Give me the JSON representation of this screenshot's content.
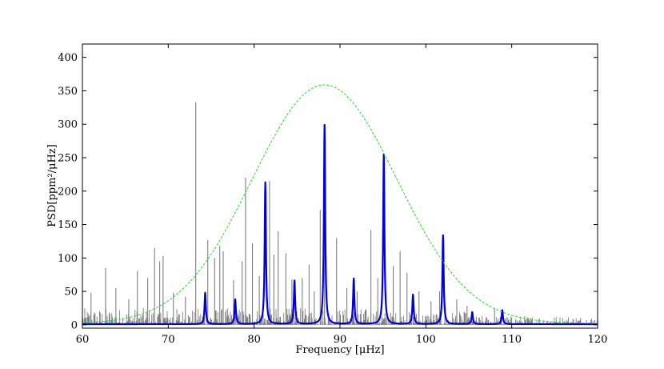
{
  "chart_data": {
    "type": "line",
    "title": "",
    "xlabel": "Frequency [μHz]",
    "ylabel": "PSD[ppm²/μHz]",
    "xlim": [
      60,
      120
    ],
    "ylim": [
      -5,
      420
    ],
    "grid": false,
    "x_ticks": [
      60,
      70,
      80,
      90,
      100,
      110,
      120
    ],
    "y_ticks": [
      0,
      50,
      100,
      150,
      200,
      250,
      300,
      350,
      400
    ],
    "series": [
      {
        "kind": "observed_spectrum",
        "color": "#808080",
        "baseline_band_max": 25,
        "spikes": [
          {
            "x": 61.0,
            "y": 48
          },
          {
            "x": 62.7,
            "y": 85
          },
          {
            "x": 63.9,
            "y": 55
          },
          {
            "x": 65.4,
            "y": 38
          },
          {
            "x": 66.4,
            "y": 80
          },
          {
            "x": 67.6,
            "y": 70
          },
          {
            "x": 68.4,
            "y": 115
          },
          {
            "x": 69.0,
            "y": 95
          },
          {
            "x": 69.4,
            "y": 103
          },
          {
            "x": 70.6,
            "y": 48
          },
          {
            "x": 72.0,
            "y": 42
          },
          {
            "x": 73.2,
            "y": 333
          },
          {
            "x": 74.6,
            "y": 127
          },
          {
            "x": 75.4,
            "y": 100
          },
          {
            "x": 76.0,
            "y": 118
          },
          {
            "x": 76.4,
            "y": 110
          },
          {
            "x": 77.6,
            "y": 67
          },
          {
            "x": 78.6,
            "y": 95
          },
          {
            "x": 79.0,
            "y": 220
          },
          {
            "x": 79.8,
            "y": 122
          },
          {
            "x": 80.6,
            "y": 73
          },
          {
            "x": 81.8,
            "y": 215
          },
          {
            "x": 82.3,
            "y": 105
          },
          {
            "x": 82.8,
            "y": 140
          },
          {
            "x": 83.7,
            "y": 107
          },
          {
            "x": 84.4,
            "y": 68
          },
          {
            "x": 85.6,
            "y": 70
          },
          {
            "x": 86.4,
            "y": 90
          },
          {
            "x": 87.0,
            "y": 50
          },
          {
            "x": 87.7,
            "y": 172
          },
          {
            "x": 88.2,
            "y": 165
          },
          {
            "x": 89.6,
            "y": 130
          },
          {
            "x": 90.8,
            "y": 55
          },
          {
            "x": 92.0,
            "y": 50
          },
          {
            "x": 93.6,
            "y": 142
          },
          {
            "x": 94.4,
            "y": 70
          },
          {
            "x": 96.2,
            "y": 88
          },
          {
            "x": 97.0,
            "y": 110
          },
          {
            "x": 97.8,
            "y": 78
          },
          {
            "x": 99.2,
            "y": 50
          },
          {
            "x": 100.6,
            "y": 35
          },
          {
            "x": 101.6,
            "y": 50
          },
          {
            "x": 103.6,
            "y": 38
          },
          {
            "x": 104.8,
            "y": 28
          },
          {
            "x": 108.0,
            "y": 24
          }
        ]
      },
      {
        "kind": "model_peaks",
        "color": "#0000dd",
        "peaks": [
          {
            "x": 74.3,
            "y": 47
          },
          {
            "x": 77.8,
            "y": 37
          },
          {
            "x": 81.3,
            "y": 212
          },
          {
            "x": 84.7,
            "y": 65
          },
          {
            "x": 88.2,
            "y": 298
          },
          {
            "x": 91.6,
            "y": 68
          },
          {
            "x": 95.1,
            "y": 254
          },
          {
            "x": 98.5,
            "y": 44
          },
          {
            "x": 102.0,
            "y": 133
          },
          {
            "x": 105.4,
            "y": 18
          },
          {
            "x": 108.9,
            "y": 21
          }
        ]
      },
      {
        "kind": "gaussian_envelope",
        "color": "#22dd22",
        "style": "dashed",
        "center": 88.2,
        "height": 357,
        "sigma": 8.4,
        "offset": 2
      }
    ]
  }
}
